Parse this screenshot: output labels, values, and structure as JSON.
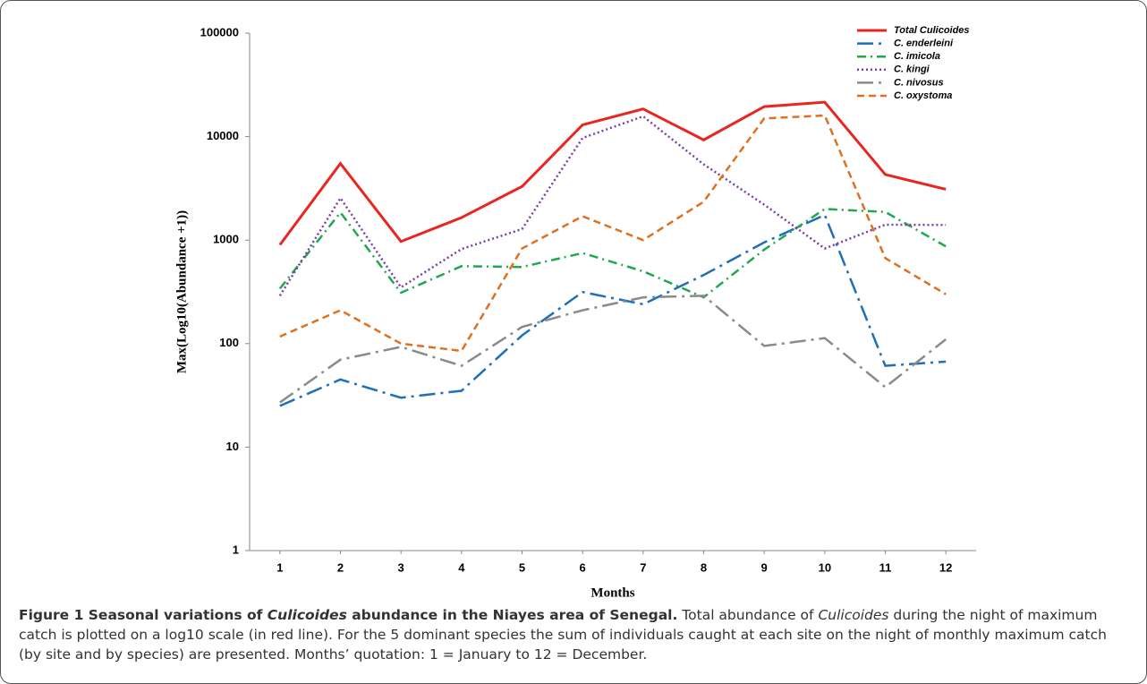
{
  "chart_data": {
    "type": "line",
    "y_label": "Max(Log10(Abundance +1))",
    "x_label": "Months",
    "x": [
      1,
      2,
      3,
      4,
      5,
      6,
      7,
      8,
      9,
      10,
      11,
      12
    ],
    "xlim": [
      0.5,
      12.5
    ],
    "xticks": [
      1,
      2,
      3,
      4,
      5,
      6,
      7,
      8,
      9,
      10,
      11,
      12
    ],
    "ylim": [
      1,
      100000
    ],
    "yticks": [
      1,
      10,
      100,
      1000,
      10000,
      100000
    ],
    "log_scale": true,
    "grid": false,
    "legend": "top-right",
    "series": [
      {
        "name": "Total Culicoides",
        "color": "#e8261f",
        "dash": "solid",
        "values": [
          900,
          5500,
          970,
          1650,
          3300,
          13000,
          18500,
          9300,
          19500,
          21500,
          4300,
          3100
        ]
      },
      {
        "name": "C. enderleini",
        "color": "#1f6fb8",
        "dash": "long-dash-dot",
        "values": [
          25,
          45,
          30,
          35,
          120,
          315,
          240,
          460,
          950,
          1750,
          61,
          67
        ]
      },
      {
        "name": "C. imicola",
        "color": "#1fa84f",
        "dash": "dash-dot",
        "values": [
          340,
          1850,
          310,
          560,
          550,
          750,
          500,
          280,
          810,
          2000,
          1870,
          870
        ]
      },
      {
        "name": "C. kingi",
        "color": "#7b3fa0",
        "dash": "dot",
        "values": [
          290,
          2550,
          350,
          820,
          1280,
          9700,
          15700,
          5400,
          2200,
          830,
          1410,
          1400
        ]
      },
      {
        "name": "C. nivosus",
        "color": "#8a8a8a",
        "dash": "long-dash-dot",
        "values": [
          27,
          70,
          93,
          61,
          145,
          210,
          280,
          290,
          95,
          113,
          38,
          110
        ]
      },
      {
        "name": "C. oxystoma",
        "color": "#e07020",
        "dash": "dash",
        "values": [
          117,
          210,
          100,
          85,
          830,
          1700,
          1000,
          2350,
          15000,
          16000,
          670,
          300
        ]
      }
    ]
  },
  "caption": [
    {
      "text": "Figure 1 Seasonal variations of ",
      "style": "bold"
    },
    {
      "text": "Culicoides",
      "style": "bold-italic"
    },
    {
      "text": " abundance in the Niayes area of Senegal.",
      "style": "bold"
    },
    {
      "text": " Total abundance of ",
      "style": "normal"
    },
    {
      "text": "Culicoides",
      "style": "italic"
    },
    {
      "text": " during the night of maximum catch is plotted on a log10 scale (in red line). For the 5 dominant species the sum of individuals caught at each site on the night of monthly maximum catch (by site and by species) are presented. Months’ quotation: 1 = January to 12 = December.",
      "style": "normal"
    }
  ]
}
